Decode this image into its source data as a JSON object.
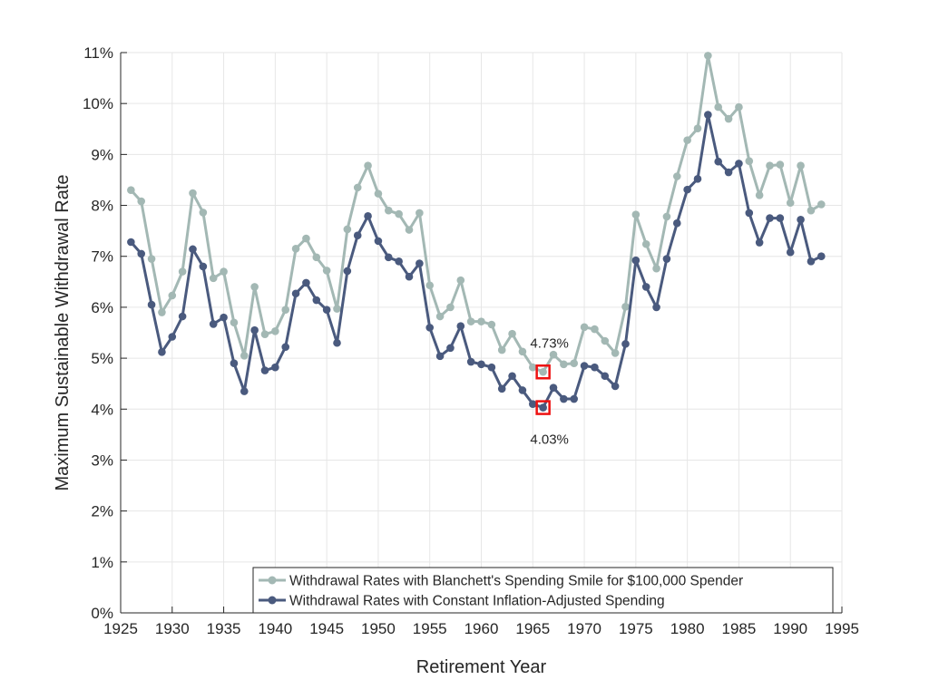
{
  "chart_data": {
    "type": "line",
    "xlabel": "Retirement Year",
    "ylabel": "Maximum Sustainable Withdrawal Rate",
    "xlim": [
      1925,
      1995
    ],
    "ylim": [
      0,
      11
    ],
    "x_ticks": [
      1925,
      1930,
      1935,
      1940,
      1945,
      1950,
      1955,
      1960,
      1965,
      1970,
      1975,
      1980,
      1985,
      1990,
      1995
    ],
    "x_tick_labels": [
      "1925",
      "1930",
      "1935",
      "1940",
      "1945",
      "1950",
      "1955",
      "1960",
      "1965",
      "1970",
      "1975",
      "1980",
      "1985",
      "1990",
      "1995"
    ],
    "y_ticks": [
      0,
      1,
      2,
      3,
      4,
      5,
      6,
      7,
      8,
      9,
      10,
      11
    ],
    "y_tick_labels": [
      "0%",
      "1%",
      "2%",
      "3%",
      "4%",
      "5%",
      "6%",
      "7%",
      "8%",
      "9%",
      "10%",
      "11%"
    ],
    "grid": true,
    "legend_position": "bottom-right",
    "x": [
      1926,
      1927,
      1928,
      1929,
      1930,
      1931,
      1932,
      1933,
      1934,
      1935,
      1936,
      1937,
      1938,
      1939,
      1940,
      1941,
      1942,
      1943,
      1944,
      1945,
      1946,
      1947,
      1948,
      1949,
      1950,
      1951,
      1952,
      1953,
      1954,
      1955,
      1956,
      1957,
      1958,
      1959,
      1960,
      1961,
      1962,
      1963,
      1964,
      1965,
      1966,
      1967,
      1968,
      1969,
      1970,
      1971,
      1972,
      1973,
      1974,
      1975,
      1976,
      1977,
      1978,
      1979,
      1980,
      1981,
      1982,
      1983,
      1984,
      1985,
      1986,
      1987,
      1988,
      1989,
      1990,
      1991,
      1992,
      1993
    ],
    "series": [
      {
        "name": "Withdrawal Rates with Blanchett's Spending Smile for $100,000 Spender",
        "color": "#a3b8b4",
        "values": [
          8.3,
          8.08,
          6.95,
          5.9,
          6.23,
          6.7,
          8.24,
          7.86,
          6.57,
          6.7,
          5.7,
          5.05,
          6.4,
          5.47,
          5.53,
          5.95,
          7.15,
          7.35,
          6.98,
          6.72,
          5.97,
          7.53,
          8.35,
          8.78,
          8.23,
          7.9,
          7.83,
          7.52,
          7.85,
          6.43,
          5.82,
          6.0,
          6.53,
          5.72,
          5.72,
          5.66,
          5.16,
          5.48,
          5.13,
          4.82,
          4.73,
          5.07,
          4.88,
          4.9,
          5.61,
          5.57,
          5.34,
          5.1,
          6.01,
          7.82,
          7.24,
          6.76,
          7.78,
          8.57,
          9.28,
          9.51,
          10.94,
          9.93,
          9.7,
          9.93,
          8.87,
          8.2,
          8.78,
          8.8,
          8.05,
          8.78,
          7.9,
          8.02
        ]
      },
      {
        "name": "Withdrawal Rates with Constant Inflation-Adjusted Spending",
        "color": "#4a5a7e",
        "values": [
          7.28,
          7.05,
          6.05,
          5.12,
          5.42,
          5.82,
          7.14,
          6.8,
          5.67,
          5.8,
          4.9,
          4.35,
          5.55,
          4.76,
          4.82,
          5.22,
          6.27,
          6.48,
          6.14,
          5.95,
          5.3,
          6.71,
          7.41,
          7.79,
          7.3,
          6.98,
          6.9,
          6.6,
          6.86,
          5.6,
          5.04,
          5.2,
          5.63,
          4.93,
          4.88,
          4.82,
          4.4,
          4.65,
          4.37,
          4.1,
          4.03,
          4.42,
          4.2,
          4.2,
          4.85,
          4.82,
          4.65,
          4.45,
          5.28,
          6.92,
          6.4,
          6.0,
          6.95,
          7.65,
          8.31,
          8.52,
          9.78,
          8.86,
          8.65,
          8.82,
          7.85,
          7.27,
          7.75,
          7.75,
          7.08,
          7.72,
          6.9,
          7.0
        ]
      }
    ],
    "annotations": [
      {
        "x": 1966,
        "y": 4.73,
        "text": "4.73%",
        "series": 0
      },
      {
        "x": 1966,
        "y": 4.03,
        "text": "4.03%",
        "series": 1
      }
    ]
  }
}
